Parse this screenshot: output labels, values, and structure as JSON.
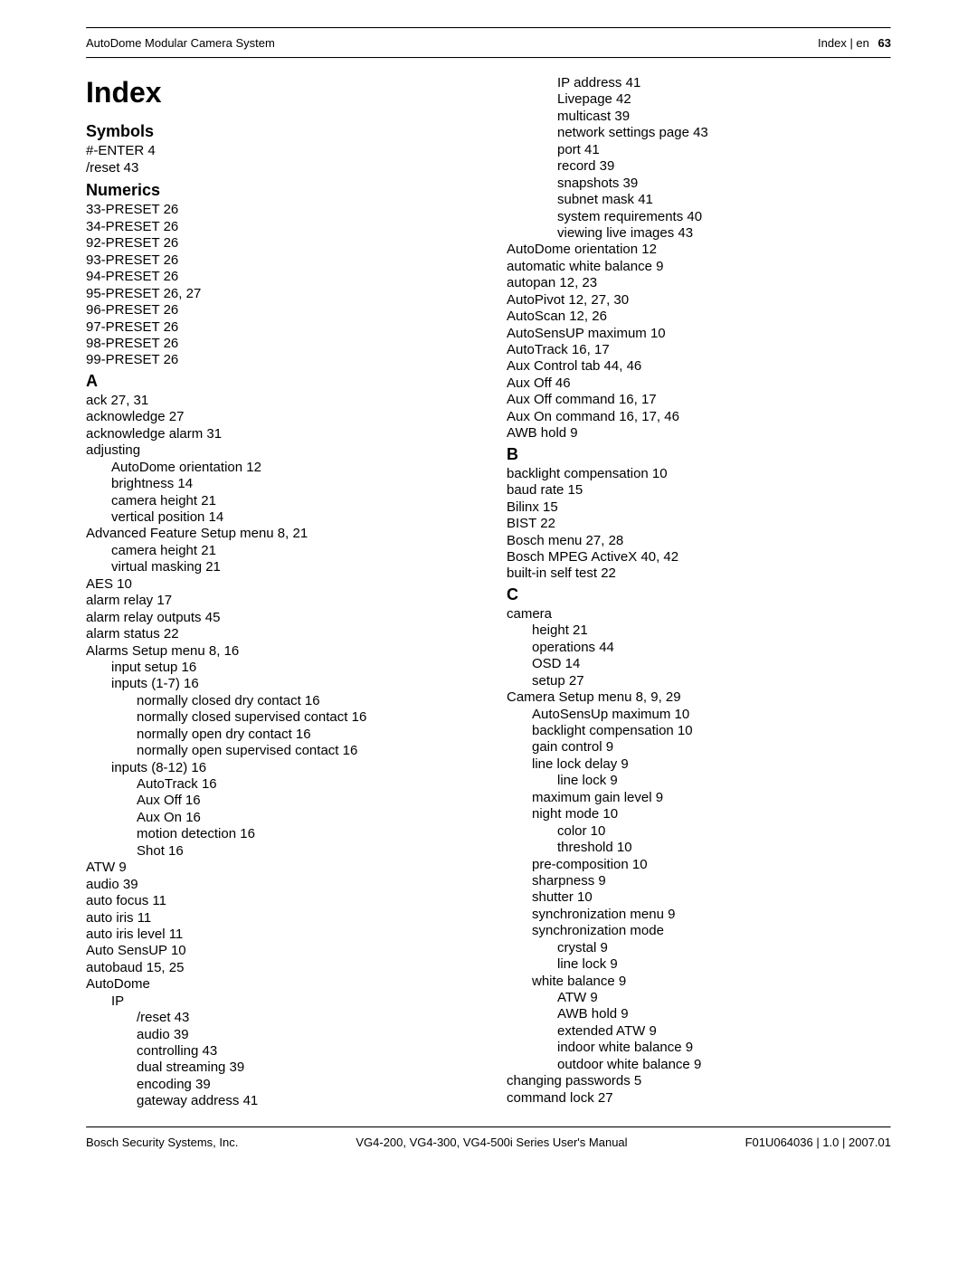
{
  "header": {
    "doc_title": "AutoDome Modular Camera System",
    "section": "Index | en",
    "page_number": "63"
  },
  "footer": {
    "left": "Bosch Security Systems, Inc.",
    "center": "VG4-200, VG4-300, VG4-500i Series User's Manual",
    "right": "F01U064036 | 1.0 | 2007.01"
  },
  "index_title": "Index",
  "section_symbols": "Symbols",
  "section_numerics": "Numerics",
  "letter_A": "A",
  "letter_B": "B",
  "letter_C": "C",
  "entries_left": [
    {
      "t": "#-ENTER 4",
      "i": 0
    },
    {
      "t": "/reset 43",
      "i": 0
    }
  ],
  "entries_numerics": [
    {
      "t": "33-PRESET 26",
      "i": 0
    },
    {
      "t": "34-PRESET 26",
      "i": 0
    },
    {
      "t": "92-PRESET 26",
      "i": 0
    },
    {
      "t": "93-PRESET 26",
      "i": 0
    },
    {
      "t": "94-PRESET 26",
      "i": 0
    },
    {
      "t": "95-PRESET 26, 27",
      "i": 0
    },
    {
      "t": "96-PRESET 26",
      "i": 0
    },
    {
      "t": "97-PRESET 26",
      "i": 0
    },
    {
      "t": "98-PRESET 26",
      "i": 0
    },
    {
      "t": "99-PRESET 26",
      "i": 0
    }
  ],
  "entries_A": [
    {
      "t": "ack 27, 31",
      "i": 0
    },
    {
      "t": "acknowledge 27",
      "i": 0
    },
    {
      "t": "acknowledge alarm 31",
      "i": 0
    },
    {
      "t": "adjusting",
      "i": 0
    },
    {
      "t": "AutoDome orientation 12",
      "i": 1
    },
    {
      "t": "brightness 14",
      "i": 1
    },
    {
      "t": "camera height 21",
      "i": 1
    },
    {
      "t": "vertical position 14",
      "i": 1
    },
    {
      "t": "Advanced Feature Setup menu 8, 21",
      "i": 0
    },
    {
      "t": "camera height 21",
      "i": 1
    },
    {
      "t": "virtual masking 21",
      "i": 1
    },
    {
      "t": "AES 10",
      "i": 0
    },
    {
      "t": "alarm relay 17",
      "i": 0
    },
    {
      "t": "alarm relay outputs 45",
      "i": 0
    },
    {
      "t": "alarm status 22",
      "i": 0
    },
    {
      "t": "Alarms Setup menu 8, 16",
      "i": 0
    },
    {
      "t": "input setup 16",
      "i": 1
    },
    {
      "t": "inputs (1-7) 16",
      "i": 1
    },
    {
      "t": "normally closed dry contact 16",
      "i": 2
    },
    {
      "t": "normally closed supervised contact 16",
      "i": 2
    },
    {
      "t": "normally open dry contact 16",
      "i": 2
    },
    {
      "t": "normally open supervised contact 16",
      "i": 2
    },
    {
      "t": "inputs (8-12) 16",
      "i": 1
    },
    {
      "t": "AutoTrack 16",
      "i": 2
    },
    {
      "t": "Aux Off 16",
      "i": 2
    },
    {
      "t": "Aux On 16",
      "i": 2
    },
    {
      "t": "motion detection 16",
      "i": 2
    },
    {
      "t": "Shot 16",
      "i": 2
    },
    {
      "t": "ATW 9",
      "i": 0
    },
    {
      "t": "audio 39",
      "i": 0
    },
    {
      "t": "auto focus 11",
      "i": 0
    },
    {
      "t": "auto iris 11",
      "i": 0
    },
    {
      "t": "auto iris level 11",
      "i": 0
    },
    {
      "t": "Auto SensUP 10",
      "i": 0
    },
    {
      "t": "autobaud 15, 25",
      "i": 0
    },
    {
      "t": "AutoDome",
      "i": 0
    },
    {
      "t": "IP",
      "i": 1
    },
    {
      "t": "/reset 43",
      "i": 2
    },
    {
      "t": "audio 39",
      "i": 2
    },
    {
      "t": "controlling 43",
      "i": 2
    },
    {
      "t": "dual streaming 39",
      "i": 2
    },
    {
      "t": "encoding 39",
      "i": 2
    },
    {
      "t": "gateway address 41",
      "i": 2
    }
  ],
  "entries_col2_top": [
    {
      "t": "IP address 41",
      "i": 2
    },
    {
      "t": "Livepage 42",
      "i": 2
    },
    {
      "t": "multicast 39",
      "i": 2
    },
    {
      "t": "network settings page 43",
      "i": 2
    },
    {
      "t": "port 41",
      "i": 2
    },
    {
      "t": "record 39",
      "i": 2
    },
    {
      "t": "snapshots 39",
      "i": 2
    },
    {
      "t": "subnet mask 41",
      "i": 2
    },
    {
      "t": "system requirements 40",
      "i": 2
    },
    {
      "t": "viewing live images 43",
      "i": 2
    },
    {
      "t": "AutoDome orientation 12",
      "i": 0
    },
    {
      "t": "automatic white balance 9",
      "i": 0
    },
    {
      "t": "autopan 12, 23",
      "i": 0
    },
    {
      "t": "AutoPivot 12, 27, 30",
      "i": 0
    },
    {
      "t": "AutoScan 12, 26",
      "i": 0
    },
    {
      "t": "AutoSensUP maximum 10",
      "i": 0
    },
    {
      "t": "AutoTrack 16, 17",
      "i": 0
    },
    {
      "t": "Aux Control tab 44, 46",
      "i": 0
    },
    {
      "t": "Aux Off 46",
      "i": 0
    },
    {
      "t": "Aux Off command 16, 17",
      "i": 0
    },
    {
      "t": "Aux On command 16, 17, 46",
      "i": 0
    },
    {
      "t": "AWB hold 9",
      "i": 0
    }
  ],
  "entries_B": [
    {
      "t": "backlight compensation 10",
      "i": 0
    },
    {
      "t": "baud rate 15",
      "i": 0
    },
    {
      "t": "Bilinx 15",
      "i": 0
    },
    {
      "t": "BIST 22",
      "i": 0
    },
    {
      "t": "Bosch menu 27, 28",
      "i": 0
    },
    {
      "t": "Bosch MPEG ActiveX 40, 42",
      "i": 0
    },
    {
      "t": "built-in self test 22",
      "i": 0
    }
  ],
  "entries_C": [
    {
      "t": "camera",
      "i": 0
    },
    {
      "t": "height 21",
      "i": 1
    },
    {
      "t": "operations 44",
      "i": 1
    },
    {
      "t": "OSD 14",
      "i": 1
    },
    {
      "t": "setup 27",
      "i": 1
    },
    {
      "t": "Camera Setup menu 8, 9, 29",
      "i": 0
    },
    {
      "t": "AutoSensUp maximum 10",
      "i": 1
    },
    {
      "t": "backlight compensation 10",
      "i": 1
    },
    {
      "t": "gain control 9",
      "i": 1
    },
    {
      "t": "line lock delay 9",
      "i": 1
    },
    {
      "t": "line lock 9",
      "i": 2
    },
    {
      "t": "maximum gain level 9",
      "i": 1
    },
    {
      "t": "night mode 10",
      "i": 1
    },
    {
      "t": "color 10",
      "i": 2
    },
    {
      "t": "threshold 10",
      "i": 2
    },
    {
      "t": "pre-composition 10",
      "i": 1
    },
    {
      "t": "sharpness 9",
      "i": 1
    },
    {
      "t": "shutter 10",
      "i": 1
    },
    {
      "t": "synchronization menu 9",
      "i": 1
    },
    {
      "t": "synchronization mode",
      "i": 1
    },
    {
      "t": "crystal 9",
      "i": 2
    },
    {
      "t": "line lock 9",
      "i": 2
    },
    {
      "t": "white balance 9",
      "i": 1
    },
    {
      "t": "ATW 9",
      "i": 2
    },
    {
      "t": "AWB hold 9",
      "i": 2
    },
    {
      "t": "extended ATW 9",
      "i": 2
    },
    {
      "t": "indoor white balance 9",
      "i": 2
    },
    {
      "t": "outdoor white balance 9",
      "i": 2
    },
    {
      "t": "changing passwords 5",
      "i": 0
    },
    {
      "t": "command lock 27",
      "i": 0
    }
  ]
}
